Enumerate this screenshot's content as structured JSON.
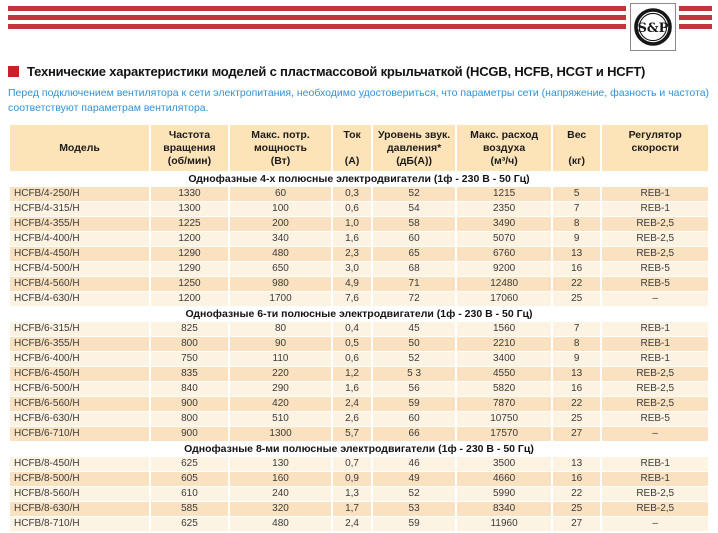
{
  "brand": {
    "logo_text": "S&P"
  },
  "page": {
    "title": "Технические характеристики моделей с пластмассовой крыльчаткой (HCGB, HCFB, HCGT и HCFT)",
    "note": "Перед подключением вентилятора к сети электропитания, необходимо удостовериться, что параметры сети (напряжение, фазность и частота) соответствуют параметрам вентилятора."
  },
  "colors": {
    "accent_red": "#c2363b",
    "bullet_red": "#cb2026",
    "note_blue": "#2e93d5",
    "table_header_bg": "#fce3b8",
    "row_dark": "#fae2c1",
    "row_light": "#fdf3e3"
  },
  "table": {
    "columns": [
      {
        "name": "model",
        "lines": [
          "",
          "Модель",
          ""
        ]
      },
      {
        "name": "rpm",
        "lines": [
          "Частота",
          "вращения",
          "(об/мин)"
        ]
      },
      {
        "name": "power",
        "lines": [
          "Макс. потр.",
          "мощность",
          "(Вт)"
        ]
      },
      {
        "name": "current",
        "lines": [
          "Ток",
          "",
          "(А)"
        ]
      },
      {
        "name": "noise",
        "lines": [
          "Уровень звук.",
          "давления*",
          "(дБ(А))"
        ]
      },
      {
        "name": "airflow",
        "lines": [
          "Макс. расход",
          "воздуха",
          "(м³/ч)"
        ]
      },
      {
        "name": "weight",
        "lines": [
          "Вес",
          "",
          "(кг)"
        ]
      },
      {
        "name": "regulator",
        "lines": [
          "Регулятор",
          "скорости",
          ""
        ]
      }
    ],
    "sections": [
      {
        "title": "Однофазные 4-х полюсные электродвигатели (1ф - 230 В - 50 Гц)",
        "rows": [
          [
            "HCFB/4-250/H",
            "1330",
            "60",
            "0,3",
            "52",
            "1215",
            "5",
            "REB-1"
          ],
          [
            "HCFB/4-315/H",
            "1300",
            "100",
            "0,6",
            "54",
            "2350",
            "7",
            "REB-1"
          ],
          [
            "HCFB/4-355/H",
            "1225",
            "200",
            "1,0",
            "58",
            "3490",
            "8",
            "REB-2,5"
          ],
          [
            "HCFB/4-400/H",
            "1200",
            "340",
            "1,6",
            "60",
            "5070",
            "9",
            "REB-2,5"
          ],
          [
            "HCFB/4-450/H",
            "1290",
            "480",
            "2,3",
            "65",
            "6760",
            "13",
            "REB-2,5"
          ],
          [
            "HCFB/4-500/H",
            "1290",
            "650",
            "3,0",
            "68",
            "9200",
            "16",
            "REB-5"
          ],
          [
            "HCFB/4-560/H",
            "1250",
            "980",
            "4,9",
            "71",
            "12480",
            "22",
            "REB-5"
          ],
          [
            "HCFB/4-630/H",
            "1200",
            "1700",
            "7,6",
            "72",
            "17060",
            "25",
            "–"
          ]
        ]
      },
      {
        "title": "Однофазные 6-ти полюсные электродвигатели (1ф - 230 В - 50 Гц)",
        "rows": [
          [
            "HCFB/6-315/H",
            "825",
            "80",
            "0,4",
            "45",
            "1560",
            "7",
            "REB-1"
          ],
          [
            "HCFB/6-355/H",
            "800",
            "90",
            "0,5",
            "50",
            "2210",
            "8",
            "REB-1"
          ],
          [
            "HCFB/6-400/H",
            "750",
            "110",
            "0,6",
            "52",
            "3400",
            "9",
            "REB-1"
          ],
          [
            "HCFB/6-450/H",
            "835",
            "220",
            "1,2",
            "5 3",
            "4550",
            "13",
            "REB-2,5"
          ],
          [
            "HCFB/6-500/H",
            "840",
            "290",
            "1,6",
            "56",
            "5820",
            "16",
            "REB-2,5"
          ],
          [
            "HCFB/6-560/H",
            "900",
            "420",
            "2,4",
            "59",
            "7870",
            "22",
            "REB-2,5"
          ],
          [
            "HCFB/6-630/H",
            "800",
            "510",
            "2,6",
            "60",
            "10750",
            "25",
            "REB-5"
          ],
          [
            "HCFB/6-710/H",
            "900",
            "1300",
            "5,7",
            "66",
            "17570",
            "27",
            "–"
          ]
        ]
      },
      {
        "title": "Однофазные 8-ми полюсные электродвигатели (1ф - 230 В - 50 Гц)",
        "rows": [
          [
            "HCFB/8-450/H",
            "625",
            "130",
            "0,7",
            "46",
            "3500",
            "13",
            "REB-1"
          ],
          [
            "HCFB/8-500/H",
            "605",
            "160",
            "0,9",
            "49",
            "4660",
            "16",
            "REB-1"
          ],
          [
            "HCFB/8-560/H",
            "610",
            "240",
            "1,3",
            "52",
            "5990",
            "22",
            "REB-2,5"
          ],
          [
            "HCFB/8-630/H",
            "585",
            "320",
            "1,7",
            "53",
            "8340",
            "25",
            "REB-2,5"
          ],
          [
            "HCFB/8-710/H",
            "625",
            "480",
            "2,4",
            "59",
            "11960",
            "27",
            "–"
          ]
        ]
      }
    ]
  }
}
